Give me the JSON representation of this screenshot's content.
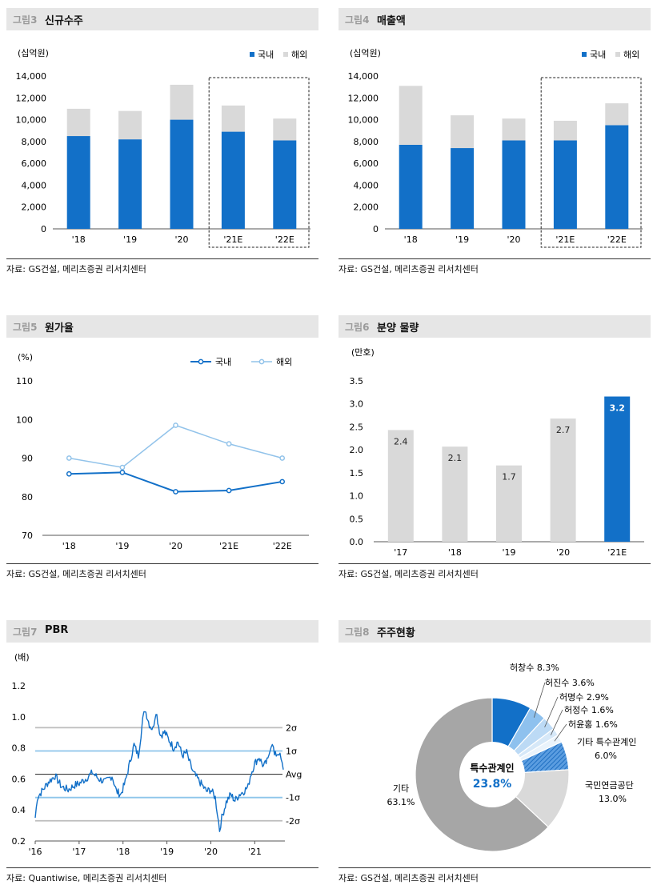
{
  "figures": [
    {
      "num": "그림3",
      "title": "신규수주",
      "source": "자료: GS건설, 메리츠증권 리서치센터"
    },
    {
      "num": "그림4",
      "title": "매출액",
      "source": "자료: GS건설, 메리츠증권 리서치센터"
    },
    {
      "num": "그림5",
      "title": "원가율",
      "source": "자료: GS건설, 메리츠증권 리서치센터"
    },
    {
      "num": "그림6",
      "title": "분양 물량",
      "source": "자료: GS건설, 메리츠증권 리서치센터"
    },
    {
      "num": "그림7",
      "title": "PBR",
      "source": "자료: Quantiwise, 메리츠증권 리서치센터"
    },
    {
      "num": "그림8",
      "title": "주주현황",
      "source": "자료: GS건설, 메리츠증권 리서치센터"
    }
  ],
  "colors": {
    "domestic": "#1270c8",
    "overseas": "#d9d9d9",
    "line_overseas": "#92c3ea",
    "pbr": "#1270c8",
    "band": "#bdbdbd",
    "band_light": "#8ec5ea"
  },
  "chart_data": [
    {
      "type": "bar",
      "stacked": true,
      "ylabel": "(십억원)",
      "categories": [
        "'18",
        "'19",
        "'20",
        "'21E",
        "'22E"
      ],
      "series": [
        {
          "name": "국내",
          "values": [
            8500,
            8200,
            10000,
            8900,
            8100
          ]
        },
        {
          "name": "해외",
          "values": [
            2500,
            2600,
            3200,
            2400,
            2000
          ]
        }
      ],
      "ylim": [
        0,
        14000
      ],
      "yticks": [
        "0",
        "2,000",
        "4,000",
        "6,000",
        "8,000",
        "10,000",
        "12,000",
        "14,000"
      ],
      "legend": "top-right",
      "grid": false,
      "highlight_box": [
        "'21E",
        "'22E"
      ]
    },
    {
      "type": "bar",
      "stacked": true,
      "ylabel": "(십억원)",
      "categories": [
        "'18",
        "'19",
        "'20",
        "'21E",
        "'22E"
      ],
      "series": [
        {
          "name": "국내",
          "values": [
            7700,
            7400,
            8100,
            8100,
            9500
          ]
        },
        {
          "name": "해외",
          "values": [
            5400,
            3000,
            2000,
            1800,
            2000
          ]
        }
      ],
      "ylim": [
        0,
        14000
      ],
      "yticks": [
        "0",
        "2,000",
        "4,000",
        "6,000",
        "8,000",
        "10,000",
        "12,000",
        "14,000"
      ],
      "legend": "top-right",
      "grid": false,
      "highlight_box": [
        "'21E",
        "'22E"
      ]
    },
    {
      "type": "line",
      "ylabel": "(%)",
      "categories": [
        "'18",
        "'19",
        "'20",
        "'21E",
        "'22E"
      ],
      "series": [
        {
          "name": "국내",
          "values": [
            85.9,
            86.3,
            81.3,
            81.6,
            83.9
          ]
        },
        {
          "name": "해외",
          "values": [
            90.0,
            87.6,
            98.5,
            93.7,
            90.0
          ]
        }
      ],
      "ylim": [
        70,
        110
      ],
      "yticks": [
        "70",
        "80",
        "90",
        "100",
        "110"
      ],
      "legend": "top-right",
      "grid": false
    },
    {
      "type": "bar",
      "ylabel": "(만호)",
      "categories": [
        "'17",
        "'18",
        "'19",
        "'20",
        "'21E"
      ],
      "values": [
        2.4,
        2.1,
        1.7,
        2.7,
        3.2
      ],
      "bar_values": [
        2.43,
        2.07,
        1.66,
        2.68,
        3.16
      ],
      "labels": [
        "2.4",
        "2.1",
        "1.7",
        "2.7",
        "3.2"
      ],
      "highlight_index": 4,
      "ylim": [
        0,
        3.5
      ],
      "yticks": [
        "0.0",
        "0.5",
        "1.0",
        "1.5",
        "2.0",
        "2.5",
        "3.0",
        "3.5"
      ],
      "grid": false
    },
    {
      "type": "line",
      "ylabel": "(배)",
      "x_ticks": [
        "'16",
        "'17",
        "'18",
        "'19",
        "'20",
        "'21"
      ],
      "x_range": [
        2016.0,
        2021.65
      ],
      "ylim": [
        0.2,
        1.2
      ],
      "yticks": [
        "0.2",
        "0.4",
        "0.6",
        "0.8",
        "1.0",
        "1.2"
      ],
      "bands": [
        {
          "label": "2σ",
          "value": 0.93
        },
        {
          "label": "1σ",
          "value": 0.78
        },
        {
          "label": "Avg",
          "value": 0.63
        },
        {
          "label": "-1σ",
          "value": 0.48
        },
        {
          "label": "-2σ",
          "value": 0.33
        }
      ],
      "keypoints": [
        [
          2016.0,
          0.35
        ],
        [
          2016.05,
          0.48
        ],
        [
          2016.15,
          0.52
        ],
        [
          2016.3,
          0.58
        ],
        [
          2016.45,
          0.62
        ],
        [
          2016.6,
          0.55
        ],
        [
          2016.75,
          0.53
        ],
        [
          2016.9,
          0.56
        ],
        [
          2017.0,
          0.57
        ],
        [
          2017.15,
          0.6
        ],
        [
          2017.3,
          0.64
        ],
        [
          2017.45,
          0.6
        ],
        [
          2017.6,
          0.58
        ],
        [
          2017.75,
          0.62
        ],
        [
          2017.85,
          0.52
        ],
        [
          2017.95,
          0.5
        ],
        [
          2018.05,
          0.58
        ],
        [
          2018.15,
          0.7
        ],
        [
          2018.25,
          0.82
        ],
        [
          2018.35,
          0.75
        ],
        [
          2018.45,
          0.98
        ],
        [
          2018.5,
          1.05
        ],
        [
          2018.6,
          0.95
        ],
        [
          2018.68,
          0.92
        ],
        [
          2018.75,
          1.04
        ],
        [
          2018.85,
          0.88
        ],
        [
          2018.95,
          0.9
        ],
        [
          2019.05,
          0.85
        ],
        [
          2019.15,
          0.8
        ],
        [
          2019.25,
          0.84
        ],
        [
          2019.35,
          0.75
        ],
        [
          2019.45,
          0.77
        ],
        [
          2019.5,
          0.72
        ],
        [
          2019.6,
          0.64
        ],
        [
          2019.7,
          0.6
        ],
        [
          2019.8,
          0.56
        ],
        [
          2019.9,
          0.52
        ],
        [
          2020.0,
          0.53
        ],
        [
          2020.1,
          0.48
        ],
        [
          2020.15,
          0.38
        ],
        [
          2020.2,
          0.27
        ],
        [
          2020.25,
          0.35
        ],
        [
          2020.35,
          0.45
        ],
        [
          2020.45,
          0.5
        ],
        [
          2020.55,
          0.46
        ],
        [
          2020.65,
          0.5
        ],
        [
          2020.75,
          0.52
        ],
        [
          2020.85,
          0.55
        ],
        [
          2020.9,
          0.62
        ],
        [
          2021.0,
          0.7
        ],
        [
          2021.1,
          0.74
        ],
        [
          2021.2,
          0.68
        ],
        [
          2021.3,
          0.72
        ],
        [
          2021.35,
          0.8
        ],
        [
          2021.4,
          0.84
        ],
        [
          2021.45,
          0.75
        ],
        [
          2021.55,
          0.77
        ],
        [
          2021.6,
          0.72
        ],
        [
          2021.65,
          0.66
        ]
      ],
      "grid": false
    },
    {
      "type": "pie",
      "slices": [
        {
          "name": "허창수",
          "value": 8.3,
          "label": "허창수 8.3%",
          "color": "#1270c8"
        },
        {
          "name": "허진수",
          "value": 3.6,
          "label": "허진수  3.6%",
          "color": "#8ec1ee"
        },
        {
          "name": "허명수",
          "value": 2.9,
          "label": "허명수  2.9%",
          "color": "#bcdaf5"
        },
        {
          "name": "허정수",
          "value": 1.6,
          "label": "허정수  1.6%",
          "color": "#d6e8f8"
        },
        {
          "name": "허윤홍",
          "value": 1.6,
          "label": "허윤홍  1.6%",
          "color": "#eaf3fb"
        },
        {
          "name": "기타 특수관계인",
          "value": 6.0,
          "label": "기타 특수관계인",
          "label2": "6.0%",
          "color": "#4a90d9",
          "hatch": true
        },
        {
          "name": "국민연금공단",
          "value": 13.0,
          "label": "국민연금공단",
          "label2": "13.0%",
          "color": "#d9d9d9"
        },
        {
          "name": "기타",
          "value": 63.1,
          "label": "기타",
          "label2": "63.1%",
          "color": "#a6a6a6"
        }
      ],
      "center_label": "특수관계인",
      "center_value": "23.8%"
    }
  ]
}
